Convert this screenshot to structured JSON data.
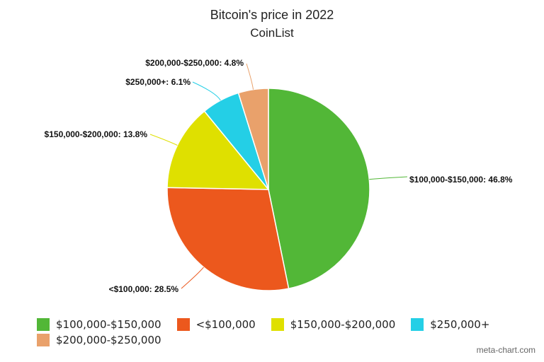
{
  "chart_data": {
    "type": "pie",
    "title": "Bitcoin's price in 2022",
    "subtitle": "CoinList",
    "slices": [
      {
        "label": "$100,000-$150,000",
        "value": 46.8,
        "color": "#52b737"
      },
      {
        "label": "<$100,000",
        "value": 28.5,
        "color": "#ec581d"
      },
      {
        "label": "$150,000-$200,000",
        "value": 13.8,
        "color": "#dfe000"
      },
      {
        "label": "$250,000+",
        "value": 6.1,
        "color": "#24cfe6"
      },
      {
        "label": "$200,000-$250,000",
        "value": 4.8,
        "color": "#e9a16b"
      }
    ],
    "data_labels": [
      "$100,000-$150,000: 46.8%",
      "<$100,000: 28.5%",
      "$150,000-$200,000: 13.8%",
      "$250,000+: 6.1%",
      "$200,000-$250,000: 4.8%"
    ],
    "legend_placement": "bottom"
  },
  "credit": "meta-chart.com"
}
